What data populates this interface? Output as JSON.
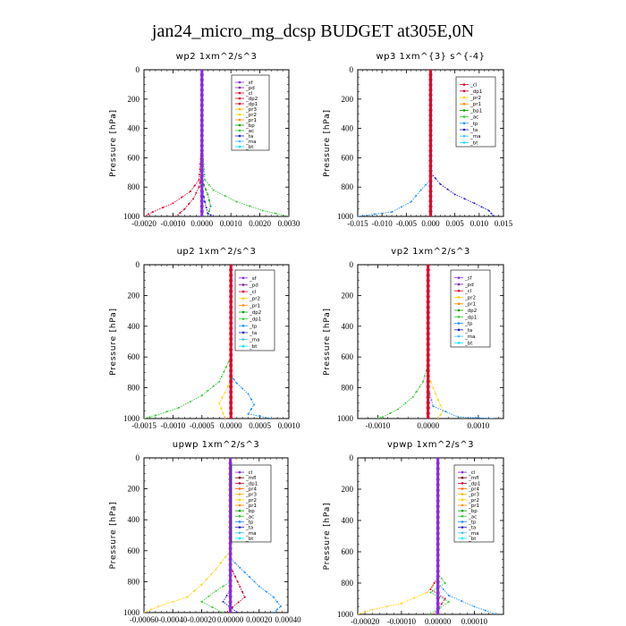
{
  "figure_title": "jan24_micro_mg_dcsp  BUDGET at305E,0N",
  "colors": {
    "sf": "#8a2be2",
    "pd": "#7a1fa0",
    "cl": "#e0002a",
    "dp1": "#c8002a",
    "dp2": "#e0002a",
    "pr1": "#ff8c00",
    "pr2": "#ffd000",
    "pr3": "#ffb000",
    "pr4": "#ff6a00",
    "bp": "#00a000",
    "bp1": "#00a000",
    "ac": "#33cc33",
    "tp": "#1e90ff",
    "ta": "#2020c0",
    "ma": "#40c0ff",
    "bt": "#00e5ff",
    "mfl": "#800000",
    "dp": "#1a6fb0"
  },
  "chart_data": [
    {
      "type": "line",
      "title": "wp2   1xm^2/s^3",
      "ylabel": "Pressure  [hPa]",
      "ylim": [
        1000,
        0
      ],
      "yticks": [
        0,
        200,
        400,
        600,
        800,
        1000
      ],
      "xlim": [
        -0.002,
        0.003
      ],
      "xticks": [
        -0.002,
        -0.001,
        0,
        0.001,
        0.002,
        0.003
      ],
      "xtick_labels": [
        "-0.0020",
        "-0.0010",
        "0.0000",
        "0.0010",
        "0.0020",
        "0.0030"
      ],
      "legend_labels": [
        "_sf",
        "_pd",
        "_cl",
        "_dp2",
        "_dp1",
        "_pr3",
        "_pr2",
        "_pr1",
        "_bp",
        "_ac",
        "_ta",
        "_ma",
        "_bt"
      ],
      "legend_colors": [
        "#8a2be2",
        "#7a1fa0",
        "#e0002a",
        "#e0002a",
        "#c8002a",
        "#ffb000",
        "#ffd000",
        "#ff8c00",
        "#00a000",
        "#33cc33",
        "#2020c0",
        "#40c0ff",
        "#00e5ff"
      ],
      "series": [
        {
          "name": "_ac",
          "color": "#33cc33",
          "points": [
            [
              0,
              0
            ],
            [
              0,
              500
            ],
            [
              0.0001,
              750
            ],
            [
              0.0004,
              820
            ],
            [
              0.0012,
              900
            ],
            [
              0.0021,
              960
            ],
            [
              0.003,
              1000
            ]
          ]
        },
        {
          "name": "_dp2",
          "color": "#e0002a",
          "points": [
            [
              0,
              0
            ],
            [
              0,
              500
            ],
            [
              -0.0001,
              750
            ],
            [
              -0.0004,
              830
            ],
            [
              -0.001,
              910
            ],
            [
              -0.0017,
              970
            ],
            [
              -0.002,
              1000
            ]
          ]
        },
        {
          "name": "_dp1",
          "color": "#c8002a",
          "points": [
            [
              0,
              0
            ],
            [
              0,
              700
            ],
            [
              -0.0001,
              800
            ],
            [
              -0.0003,
              880
            ],
            [
              -0.0006,
              950
            ],
            [
              -0.0009,
              1000
            ]
          ]
        },
        {
          "name": "_bp",
          "color": "#00a000",
          "points": [
            [
              0,
              0
            ],
            [
              0,
              750
            ],
            [
              0.0002,
              850
            ],
            [
              0.0003,
              930
            ],
            [
              0.0002,
              1000
            ]
          ]
        },
        {
          "name": "_ta",
          "color": "#2020c0",
          "points": [
            [
              0,
              0
            ],
            [
              0,
              800
            ],
            [
              0.0001,
              900
            ],
            [
              0.0002,
              980
            ],
            [
              0.0004,
              1000
            ]
          ]
        },
        {
          "name": "_sf",
          "color": "#8a2be2",
          "points": [
            [
              0,
              0
            ],
            [
              0,
              1000
            ]
          ]
        }
      ]
    },
    {
      "type": "line",
      "title": "wp3   1xm^{3} s^{-4}",
      "ylabel": "Pressure  [hPa]",
      "ylim": [
        1000,
        0
      ],
      "yticks": [
        0,
        200,
        400,
        600,
        800,
        1000
      ],
      "xlim": [
        -0.015,
        0.015
      ],
      "xticks": [
        -0.015,
        -0.01,
        -0.005,
        0,
        0.005,
        0.01,
        0.015
      ],
      "xtick_labels": [
        "-0.015",
        "-0.010",
        "-0.005",
        "0.000",
        "0.005",
        "0.010",
        "0.015"
      ],
      "legend_labels": [
        "_cl",
        "_dp1",
        "_pr2",
        "_pr1",
        "_bp1",
        "_ac",
        "_tp",
        "_ta",
        "_ma",
        "_bt"
      ],
      "legend_colors": [
        "#e0002a",
        "#c8002a",
        "#ffd000",
        "#ff8c00",
        "#00a000",
        "#33cc33",
        "#1e90ff",
        "#2020c0",
        "#40c0ff",
        "#00e5ff"
      ],
      "series": [
        {
          "name": "_ta",
          "color": "#2020c0",
          "points": [
            [
              0,
              0
            ],
            [
              0,
              700
            ],
            [
              0.002,
              780
            ],
            [
              0.005,
              850
            ],
            [
              0.009,
              910
            ],
            [
              0.012,
              960
            ],
            [
              0.013,
              1000
            ]
          ]
        },
        {
          "name": "_tp",
          "color": "#1e90ff",
          "points": [
            [
              0,
              0
            ],
            [
              0,
              750
            ],
            [
              -0.002,
              820
            ],
            [
              -0.004,
              900
            ],
            [
              -0.008,
              970
            ],
            [
              -0.015,
              1000
            ]
          ]
        },
        {
          "name": "_cl",
          "color": "#e0002a",
          "points": [
            [
              0,
              0
            ],
            [
              0,
              1000
            ]
          ]
        }
      ]
    },
    {
      "type": "line",
      "title": "up2   1xm^2/s^3",
      "ylabel": "Pressure  [hPa]",
      "ylim": [
        1000,
        0
      ],
      "yticks": [
        0,
        200,
        400,
        600,
        800,
        1000
      ],
      "xlim": [
        -0.0015,
        0.001
      ],
      "xticks": [
        -0.0015,
        -0.001,
        -0.0005,
        0,
        0.0005,
        0.001
      ],
      "xtick_labels": [
        "-0.0015",
        "-0.0010",
        "-0.0005",
        "0.0000",
        "0.0005",
        "0.0010"
      ],
      "legend_labels": [
        "_sf",
        "_pd",
        "_cl",
        "_pr2",
        "_pr1",
        "_dp2",
        "_dp1",
        "_tp",
        "_ta",
        "_ma",
        "_bt"
      ],
      "legend_colors": [
        "#8a2be2",
        "#7a1fa0",
        "#e0002a",
        "#ffd000",
        "#ff8c00",
        "#00a000",
        "#33cc33",
        "#1e90ff",
        "#2020c0",
        "#40c0ff",
        "#00e5ff"
      ],
      "series": [
        {
          "name": "_dp1",
          "color": "#33cc33",
          "points": [
            [
              0,
              0
            ],
            [
              0,
              600
            ],
            [
              -0.0002,
              760
            ],
            [
              -0.0005,
              850
            ],
            [
              -0.0009,
              930
            ],
            [
              -0.0013,
              980
            ],
            [
              -0.0015,
              1000
            ]
          ]
        },
        {
          "name": "_tp",
          "color": "#1e90ff",
          "points": [
            [
              0,
              0
            ],
            [
              0,
              720
            ],
            [
              0.0001,
              770
            ],
            [
              0.0003,
              840
            ],
            [
              0.0004,
              910
            ],
            [
              0.0003,
              970
            ],
            [
              0.0007,
              1000
            ]
          ]
        },
        {
          "name": "_pr2",
          "color": "#ffd000",
          "points": [
            [
              0,
              0
            ],
            [
              0,
              750
            ],
            [
              -0.0001,
              830
            ],
            [
              -0.0002,
              900
            ],
            [
              -0.0001,
              1000
            ]
          ]
        },
        {
          "name": "_cl",
          "color": "#e0002a",
          "points": [
            [
              0,
              0
            ],
            [
              0,
              1000
            ]
          ]
        }
      ]
    },
    {
      "type": "line",
      "title": "vp2   1xm^2/s^3",
      "ylabel": "Pressure  [hPa]",
      "ylim": [
        1000,
        0
      ],
      "yticks": [
        0,
        200,
        400,
        600,
        800,
        1000
      ],
      "xlim": [
        -0.0014,
        0.0015
      ],
      "xticks": [
        -0.001,
        0,
        0.001
      ],
      "xtick_labels": [
        "-0.0010",
        "0.0000",
        "0.0010"
      ],
      "legend_labels": [
        "_sf",
        "_pd",
        "_cl",
        "_pr2",
        "_pr1",
        "_dp2",
        "_dp1",
        "_tp",
        "_ta",
        "_ma",
        "_bt"
      ],
      "legend_colors": [
        "#8a2be2",
        "#7a1fa0",
        "#e0002a",
        "#ffd000",
        "#ff8c00",
        "#00a000",
        "#33cc33",
        "#1e90ff",
        "#2020c0",
        "#40c0ff",
        "#00e5ff"
      ],
      "series": [
        {
          "name": "_dp1",
          "color": "#33cc33",
          "points": [
            [
              0,
              0
            ],
            [
              0,
              650
            ],
            [
              -0.0001,
              760
            ],
            [
              -0.0003,
              860
            ],
            [
              -0.0006,
              940
            ],
            [
              -0.0009,
              990
            ],
            [
              -0.001,
              1000
            ]
          ]
        },
        {
          "name": "_pr2",
          "color": "#ffd000",
          "points": [
            [
              0,
              0
            ],
            [
              0,
              720
            ],
            [
              0.0001,
              800
            ],
            [
              0.0002,
              880
            ],
            [
              0.0003,
              950
            ],
            [
              0.0002,
              1000
            ]
          ]
        },
        {
          "name": "_tp",
          "color": "#1e90ff",
          "points": [
            [
              0,
              0
            ],
            [
              0,
              800
            ],
            [
              0.0001,
              920
            ],
            [
              0.0006,
              990
            ],
            [
              0.0013,
              1000
            ]
          ]
        },
        {
          "name": "_cl",
          "color": "#e0002a",
          "points": [
            [
              0,
              0
            ],
            [
              0,
              1000
            ]
          ]
        }
      ]
    },
    {
      "type": "line",
      "title": "upwp   1xm^2/s^3",
      "ylabel": "Pressure  [hPa]",
      "ylim": [
        1000,
        0
      ],
      "yticks": [
        0,
        200,
        400,
        600,
        800,
        1000
      ],
      "xlim": [
        -0.0006,
        0.0004
      ],
      "xticks": [
        -0.0006,
        -0.0004,
        -0.0002,
        0,
        0.0002,
        0.0004
      ],
      "xtick_labels": [
        "-0.00060",
        "-0.00040",
        "-0.00020",
        "0.00000",
        "0.00020",
        "0.00040"
      ],
      "legend_labels": [
        "_cl",
        "_mfl",
        "_dp1",
        "_pr4",
        "_pr3",
        "_pr2",
        "_pr1",
        "_bp",
        "_ac",
        "_tp",
        "_ta",
        "_ma",
        "_bt"
      ],
      "legend_colors": [
        "#8a2be2",
        "#800000",
        "#c8002a",
        "#ff6a00",
        "#ffb000",
        "#ffd000",
        "#ff8c00",
        "#00a000",
        "#33cc33",
        "#1e90ff",
        "#2020c0",
        "#40c0ff",
        "#00e5ff"
      ],
      "series": [
        {
          "name": "_pr2",
          "color": "#ffd000",
          "points": [
            [
              0,
              0
            ],
            [
              0,
              600
            ],
            [
              -0.0001,
              720
            ],
            [
              -0.0002,
              820
            ],
            [
              -0.0003,
              900
            ],
            [
              -0.0005,
              960
            ],
            [
              -0.0006,
              1000
            ]
          ]
        },
        {
          "name": "_tp",
          "color": "#1e90ff",
          "points": [
            [
              0,
              0
            ],
            [
              0,
              650
            ],
            [
              0.0001,
              740
            ],
            [
              0.0002,
              830
            ],
            [
              0.0003,
              900
            ],
            [
              0.00035,
              960
            ],
            [
              0.0003,
              1000
            ]
          ]
        },
        {
          "name": "_ac",
          "color": "#33cc33",
          "points": [
            [
              0,
              0
            ],
            [
              0,
              800
            ],
            [
              -0.0001,
              860
            ],
            [
              -0.0002,
              930
            ],
            [
              -5e-05,
              1000
            ]
          ]
        },
        {
          "name": "_dp1",
          "color": "#c8002a",
          "points": [
            [
              0,
              0
            ],
            [
              0,
              700
            ],
            [
              5e-05,
              800
            ],
            [
              0.0001,
              900
            ],
            [
              -3e-05,
              1000
            ]
          ]
        },
        {
          "name": "_ta",
          "color": "#2020c0",
          "points": [
            [
              0,
              0
            ],
            [
              0,
              850
            ],
            [
              -5e-05,
              930
            ],
            [
              5e-05,
              1000
            ]
          ]
        },
        {
          "name": "_cl",
          "color": "#8a2be2",
          "points": [
            [
              0,
              0
            ],
            [
              0,
              1000
            ]
          ]
        }
      ]
    },
    {
      "type": "line",
      "title": "vpwp   1xm^2/s^3",
      "ylabel": "Pressure  [hPa]",
      "ylim": [
        1000,
        0
      ],
      "yticks": [
        0,
        200,
        400,
        600,
        800,
        1000
      ],
      "xlim": [
        -0.00022,
        0.00018
      ],
      "xticks": [
        -0.0002,
        -0.0001,
        0,
        0.0001
      ],
      "xtick_labels": [
        "-0.00020",
        "-0.00010",
        "0.00000",
        "0.00010"
      ],
      "legend_labels": [
        "_cl",
        "_mfl",
        "_dp1",
        "_pr4",
        "_pr3",
        "_pr2",
        "_pr1",
        "_bp",
        "_ac",
        "_tp",
        "_ta",
        "_ma",
        "_bt"
      ],
      "legend_colors": [
        "#8a2be2",
        "#800000",
        "#c8002a",
        "#ff6a00",
        "#ffb000",
        "#ffd000",
        "#ff8c00",
        "#00a000",
        "#33cc33",
        "#1e90ff",
        "#2020c0",
        "#40c0ff",
        "#00e5ff"
      ],
      "series": [
        {
          "name": "_pr2",
          "color": "#ffd000",
          "points": [
            [
              0,
              0
            ],
            [
              0,
              780
            ],
            [
              -3e-05,
              860
            ],
            [
              -0.0001,
              930
            ],
            [
              -0.00018,
              970
            ],
            [
              -0.00022,
              1000
            ]
          ]
        },
        {
          "name": "_tp",
          "color": "#1e90ff",
          "points": [
            [
              0,
              0
            ],
            [
              0,
              800
            ],
            [
              3e-05,
              880
            ],
            [
              0.0001,
              950
            ],
            [
              0.00016,
              1000
            ]
          ]
        },
        {
          "name": "_ac",
          "color": "#33cc33",
          "points": [
            [
              0,
              0
            ],
            [
              0,
              740
            ],
            [
              2e-05,
              800
            ],
            [
              -2e-05,
              860
            ],
            [
              3e-05,
              920
            ],
            [
              -2e-05,
              1000
            ]
          ]
        },
        {
          "name": "_dp1",
          "color": "#c8002a",
          "points": [
            [
              0,
              0
            ],
            [
              0,
              760
            ],
            [
              -2e-05,
              840
            ],
            [
              2e-05,
              900
            ],
            [
              -1e-05,
              1000
            ]
          ]
        },
        {
          "name": "_cl",
          "color": "#8a2be2",
          "points": [
            [
              0,
              0
            ],
            [
              0,
              1000
            ]
          ]
        }
      ]
    }
  ]
}
